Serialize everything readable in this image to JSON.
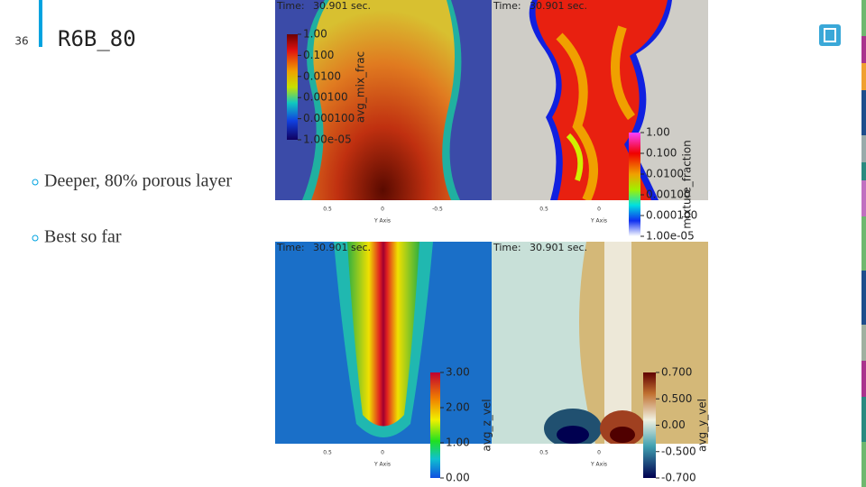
{
  "slide_number": "36",
  "title": "R6B_80",
  "bullets": [
    "Deeper, 80% porous layer",
    "Best so far"
  ],
  "panels": [
    {
      "time_label": "Time:",
      "time_value": "30.901 sec.",
      "colorbar_title": "avg_mix_frac",
      "colorbar_ticks": [
        "1.00",
        "0.100",
        "0.0100",
        "0.00100",
        "0.000100",
        "1.00e-05"
      ],
      "axis_ticks": [
        "0.5",
        "0",
        "-0.5"
      ],
      "axis_title": "Y Axis"
    },
    {
      "time_label": "Time:",
      "time_value": "30.901 sec.",
      "colorbar_title": "mixture_fraction",
      "colorbar_ticks": [
        "1.00",
        "0.100",
        "0.0100",
        "0.00100",
        "0.000100",
        "1.00e-05"
      ],
      "axis_ticks": [
        "0.5",
        "0"
      ],
      "axis_title": "Y Axis"
    },
    {
      "time_label": "Time:",
      "time_value": "30.901 sec.",
      "colorbar_title": "avg_z_vel",
      "colorbar_ticks": [
        "3.00",
        "2.00",
        "1.00",
        "0.00"
      ],
      "axis_ticks": [
        "0.5",
        "0"
      ],
      "axis_title": "Y Axis"
    },
    {
      "time_label": "Time:",
      "time_value": "30.901 sec.",
      "colorbar_title": "avg_y_vel",
      "colorbar_ticks": [
        "0.700",
        "0.500",
        "0.00",
        "-0.500",
        "-0.700"
      ],
      "axis_ticks": [
        "0.5",
        "0"
      ],
      "axis_title": "Y Axis"
    }
  ]
}
